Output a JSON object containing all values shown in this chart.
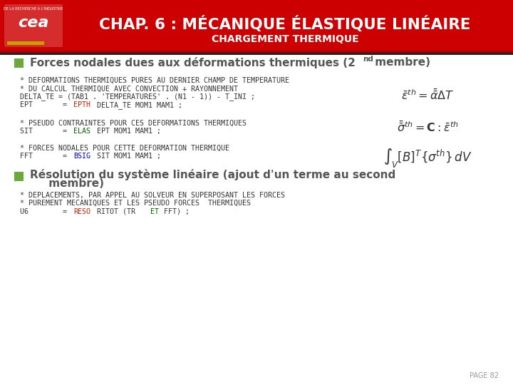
{
  "header_bg": "#cc0000",
  "header_dark_bg": "#aa0000",
  "header_title": "CHAP. 6 : MÉCANIQUE ÉLASTIQUE LINÉAIRE",
  "header_subtitle": "CHARGEMENT THERMIQUE",
  "header_title_color": "#ffffff",
  "header_subtitle_color": "#ffffff",
  "body_bg": "#ffffff",
  "bullet_color": "#6aaa3a",
  "page_number": "PAGE 82",
  "code_color": "#333333",
  "red_color": "#cc2200",
  "green_color": "#006600",
  "blue_color": "#0000cc",
  "gray_text": "#555555"
}
